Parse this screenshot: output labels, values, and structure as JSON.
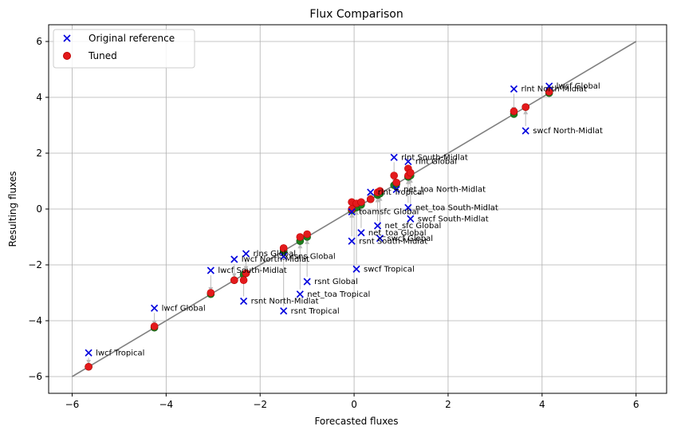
{
  "chart_data": {
    "type": "scatter",
    "title": "Flux Comparison",
    "xlabel": "Forecasted fluxes",
    "ylabel": "Resulting fluxes",
    "xlim": [
      -6.5,
      6.65
    ],
    "ylim": [
      -6.6,
      6.6
    ],
    "xticks": [
      "−6",
      "−4",
      "−2",
      "0",
      "2",
      "4",
      "6"
    ],
    "yticks": [
      "−6",
      "−4",
      "−2",
      "0",
      "2",
      "4",
      "6"
    ],
    "xtick_values": [
      -6,
      -4,
      -2,
      0,
      2,
      4,
      6
    ],
    "ytick_values": [
      -6,
      -4,
      -2,
      0,
      2,
      4,
      6
    ],
    "grid": true,
    "legend_position": "top-left",
    "colors": {
      "original": "#0000dd",
      "tuned": "#e31a1c",
      "tuned_edge": "#c00000",
      "projected": "#1e7d1e",
      "identity_line": "#808080",
      "arrow": "#bbbbbb",
      "grid": "#b0b0b0"
    },
    "identity_line": {
      "x": [
        -6,
        6
      ],
      "y": [
        -6,
        6
      ]
    },
    "series": [
      {
        "name": "Original reference",
        "marker": "x"
      },
      {
        "name": "Tuned",
        "marker": "circle"
      }
    ],
    "points": [
      {
        "label": "lwcf Tropical",
        "x": -5.65,
        "y_orig": -5.15,
        "y_tuned": -5.65
      },
      {
        "label": "lwcf Global",
        "x": -4.25,
        "y_orig": -3.55,
        "y_tuned": -4.2
      },
      {
        "label": "lwcf South-Midlat",
        "x": -3.05,
        "y_orig": -2.2,
        "y_tuned": -3.0
      },
      {
        "label": "lwcf North-Midlat",
        "x": -2.55,
        "y_orig": -1.8,
        "y_tuned": -2.55
      },
      {
        "label": "rlns Global",
        "x": -2.3,
        "y_orig": -1.6,
        "y_tuned": -2.3
      },
      {
        "label": "rsnt North-Midlat",
        "x": -2.35,
        "y_orig": -3.3,
        "y_tuned": -2.55
      },
      {
        "label": "rsns Global",
        "x": -1.5,
        "y_orig": -1.7,
        "y_tuned": -1.4
      },
      {
        "label": "rsnt Tropical",
        "x": -1.5,
        "y_orig": -3.65,
        "y_tuned": -1.4
      },
      {
        "label": "net_toa Tropical",
        "x": -1.15,
        "y_orig": -3.05,
        "y_tuned": -1.0
      },
      {
        "label": "rsnt Global",
        "x": -1.0,
        "y_orig": -2.6,
        "y_tuned": -0.9
      },
      {
        "label": "rsnt South-Midlat",
        "x": -0.05,
        "y_orig": -1.15,
        "y_tuned": 0.25
      },
      {
        "label": "swcf Tropical",
        "x": 0.05,
        "y_orig": -2.15,
        "y_tuned": 0.2
      },
      {
        "label": "net_toa Global",
        "x": 0.15,
        "y_orig": -0.85,
        "y_tuned": 0.25
      },
      {
        "label": "toamsfc Global",
        "x": -0.05,
        "y_orig": -0.1,
        "y_tuned": 0.0
      },
      {
        "label": "net_sfc Global",
        "x": 0.5,
        "y_orig": -0.6,
        "y_tuned": 0.6
      },
      {
        "label": "rlnt Tropical",
        "x": 0.35,
        "y_orig": 0.6,
        "y_tuned": 0.35
      },
      {
        "label": "rlnt South-Midlat",
        "x": 0.85,
        "y_orig": 1.85,
        "y_tuned": 1.2
      },
      {
        "label": "rlnt Global",
        "x": 1.15,
        "y_orig": 1.7,
        "y_tuned": 1.45
      },
      {
        "label": "net_toa North-Midlat",
        "x": 0.9,
        "y_orig": 0.7,
        "y_tuned": 0.95
      },
      {
        "label": "net_toa South-Midlat",
        "x": 1.15,
        "y_orig": 0.05,
        "y_tuned": 1.2
      },
      {
        "label": "swcf South-Midlat",
        "x": 1.2,
        "y_orig": -0.35,
        "y_tuned": 1.3
      },
      {
        "label": "swcf Global",
        "x": 0.55,
        "y_orig": -1.05,
        "y_tuned": 0.65
      },
      {
        "label": "rlnt North-Midlat",
        "x": 3.4,
        "y_orig": 4.3,
        "y_tuned": 3.5
      },
      {
        "label": "lwcf Global ",
        "x": 4.15,
        "y_orig": 4.4,
        "y_tuned": 4.2
      },
      {
        "label": "swcf North-Midlat",
        "x": 3.65,
        "y_orig": 2.8,
        "y_tuned": 3.65
      }
    ]
  }
}
